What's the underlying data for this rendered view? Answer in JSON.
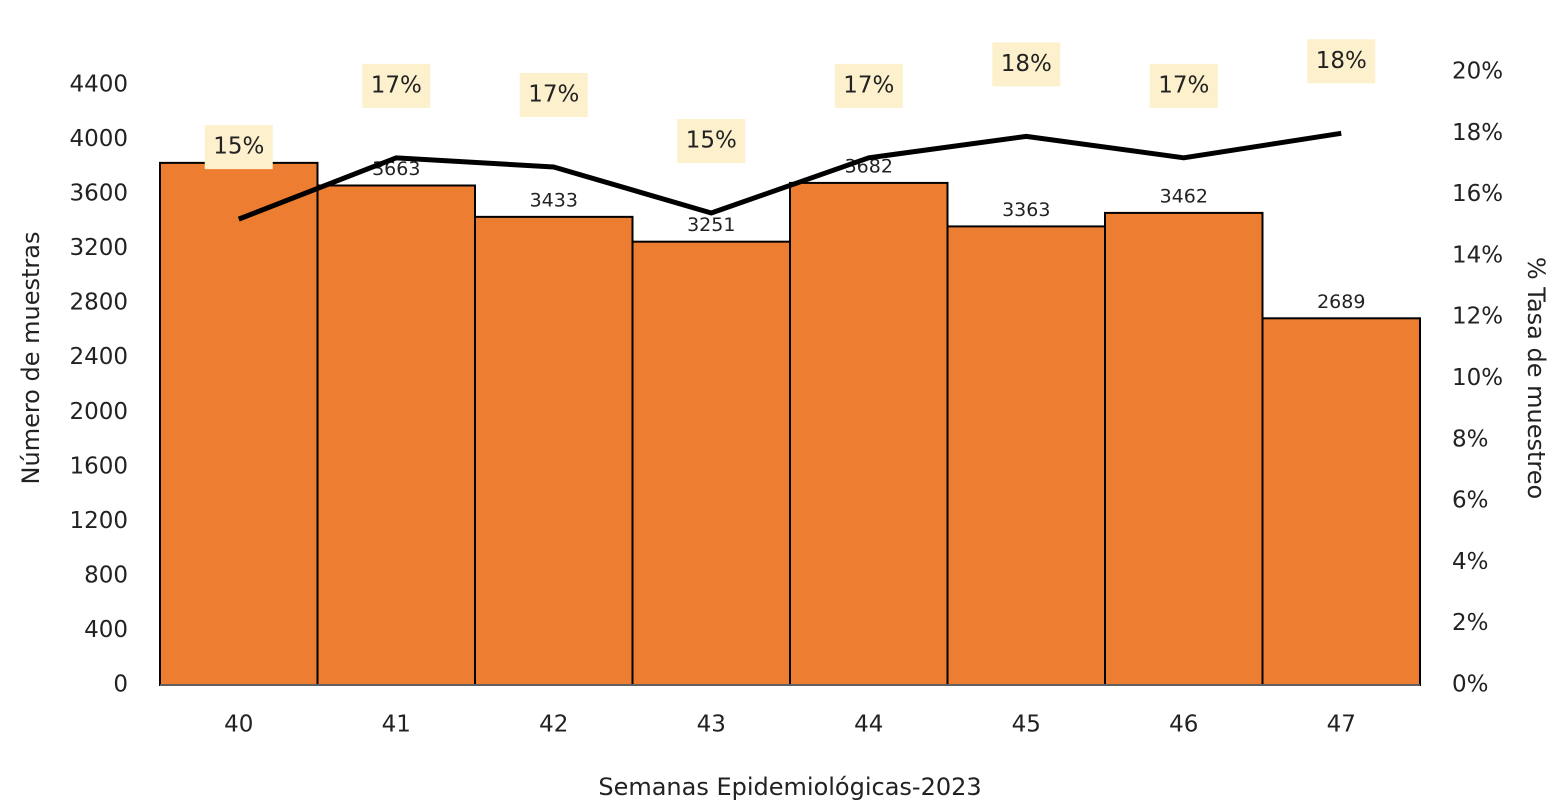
{
  "chart_data": {
    "type": "bar-line",
    "x_label": "Semanas Epidemiológicas-2023",
    "y_label": "Número de muestras",
    "y2_label": "% Tasa de muestreo",
    "categories": [
      40,
      41,
      42,
      43,
      44,
      45,
      46,
      47
    ],
    "series": [
      {
        "type": "bar",
        "color": "#ed7d31",
        "values": [
          3829,
          3663,
          3433,
          3251,
          3682,
          3363,
          3462,
          2689
        ]
      },
      {
        "type": "line",
        "axis": "y2",
        "color": "#000000",
        "values": [
          15.2,
          17.2,
          16.9,
          15.4,
          17.2,
          17.9,
          17.2,
          18.0
        ],
        "value_labels": [
          "15%",
          "17%",
          "17%",
          "15%",
          "17%",
          "18%",
          "17%",
          "18%"
        ]
      }
    ],
    "ylim": [
      0,
      4400
    ],
    "yticks": [
      0,
      400,
      800,
      1200,
      1600,
      2000,
      2400,
      2800,
      3200,
      3600,
      4000,
      4400
    ],
    "y2lim": [
      0,
      20
    ],
    "y2ticks": [
      {
        "value": 0,
        "label": "0%"
      },
      {
        "value": 2,
        "label": "2%"
      },
      {
        "value": 4,
        "label": "4%"
      },
      {
        "value": 6,
        "label": "6%"
      },
      {
        "value": 8,
        "label": "8%"
      },
      {
        "value": 10,
        "label": "10%"
      },
      {
        "value": 12,
        "label": "12%"
      },
      {
        "value": 14,
        "label": "14%"
      },
      {
        "value": 16,
        "label": "16%"
      },
      {
        "value": 18,
        "label": "18%"
      },
      {
        "value": 20,
        "label": "20%"
      }
    ]
  }
}
